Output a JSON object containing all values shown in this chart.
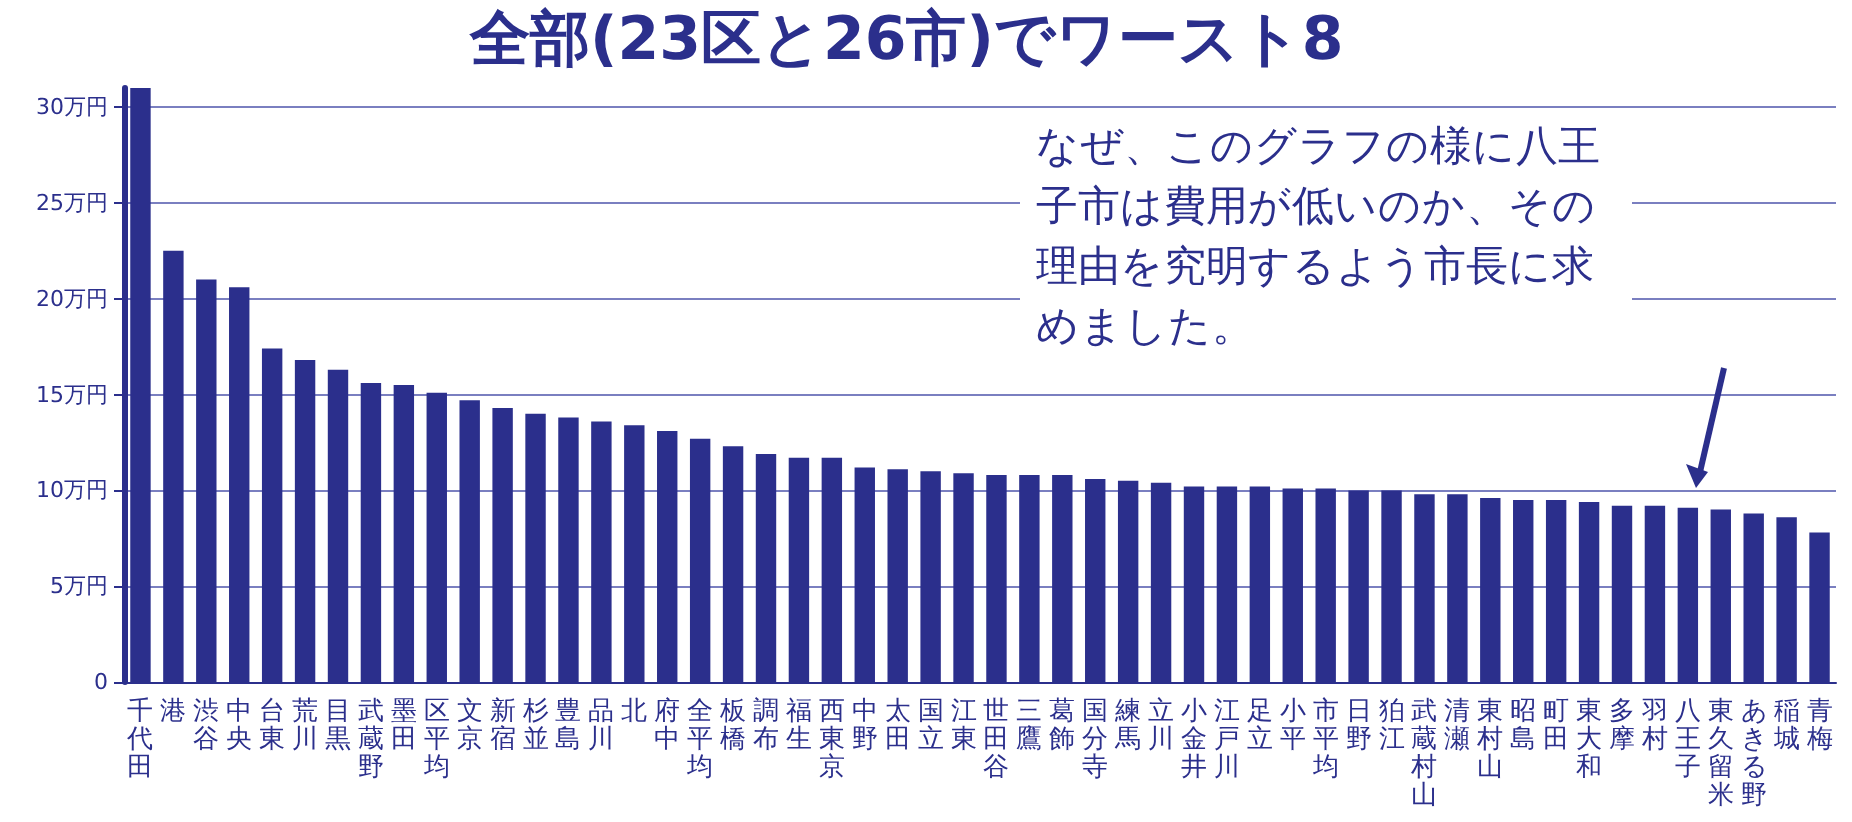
{
  "chart_data": {
    "type": "bar",
    "title": "全部(23区と26市)でワースト8",
    "categories": [
      "千代田",
      "港",
      "渋谷",
      "中央",
      "台東",
      "荒川",
      "目黒",
      "武蔵野",
      "墨田",
      "区平均",
      "文京",
      "新宿",
      "杉並",
      "豊島",
      "品川",
      "北",
      "府中",
      "全平均",
      "板橋",
      "調布",
      "福生",
      "西東京",
      "中野",
      "太田",
      "国立",
      "江東",
      "世田谷",
      "三鷹",
      "葛飾",
      "国分寺",
      "練馬",
      "立川",
      "小金井",
      "江戸川",
      "足立",
      "小平",
      "市平均",
      "日野",
      "狛江",
      "武蔵村山",
      "清瀬",
      "東村山",
      "昭島",
      "町田",
      "東大和",
      "多摩",
      "羽村",
      "八王子",
      "東久留米",
      "あきる野",
      "稲城",
      "青梅"
    ],
    "values": [
      31,
      22.5,
      21.0,
      20.6,
      17.4,
      16.8,
      16.3,
      15.6,
      15.5,
      15.1,
      14.7,
      14.3,
      14.0,
      13.8,
      13.6,
      13.4,
      13.1,
      12.7,
      12.3,
      11.9,
      11.7,
      11.7,
      11.2,
      11.1,
      11.0,
      10.9,
      10.8,
      10.8,
      10.8,
      10.6,
      10.5,
      10.4,
      10.2,
      10.2,
      10.2,
      10.1,
      10.1,
      10.0,
      10.0,
      9.8,
      9.8,
      9.6,
      9.5,
      9.5,
      9.4,
      9.2,
      9.2,
      9.1,
      9.0,
      8.8,
      8.6,
      7.8
    ],
    "color": "#2b2f8c",
    "ylim": [
      0,
      31
    ],
    "yticks": [
      0,
      {
        "value": 5,
        "label": "5万円"
      },
      {
        "value": 10,
        "label": "10万円"
      },
      {
        "value": 15,
        "label": "15万円"
      },
      {
        "value": 20,
        "label": "20万円"
      },
      {
        "value": 25,
        "label": "25万円"
      },
      {
        "value": 30,
        "label": "30万円"
      }
    ],
    "grid": "y",
    "annotations": [
      "なぜ、このグラフの様に八王子市は費用が低いのか、その理由を究明するよう市長に求めました。"
    ]
  }
}
